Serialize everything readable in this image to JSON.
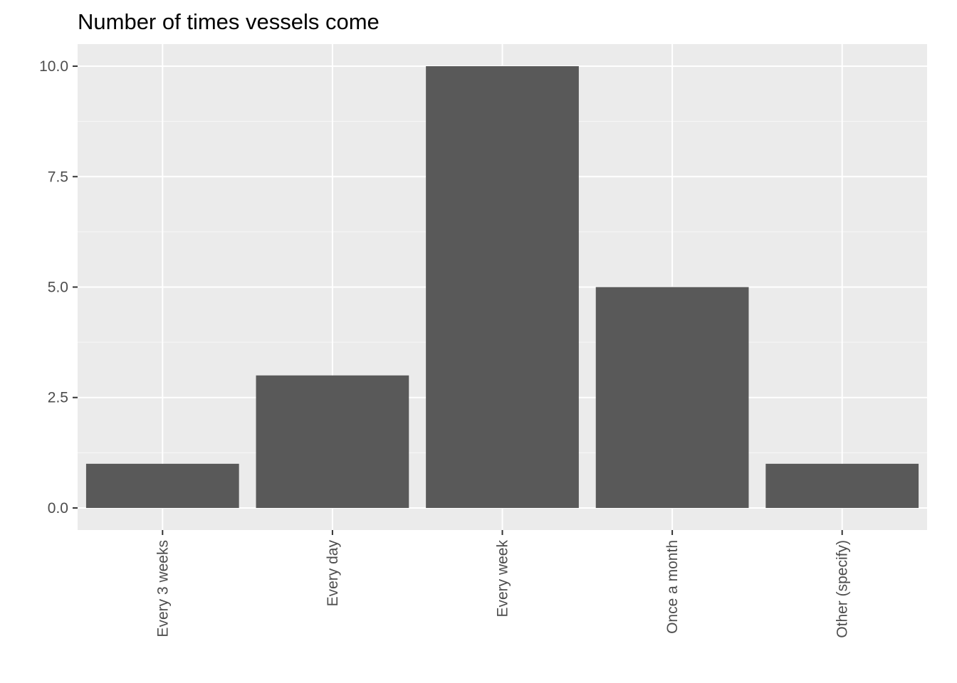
{
  "chart_data": {
    "type": "bar",
    "title": "Number of times vessels come",
    "xlabel": "",
    "ylabel": "",
    "categories": [
      "Every 3 weeks",
      "Every day",
      "Every week",
      "Once a month",
      "Other (specify)"
    ],
    "values": [
      1,
      3,
      10,
      5,
      1
    ],
    "ylim": [
      -0.5,
      10.5
    ],
    "yticks": [
      0,
      2.5,
      5,
      7.5,
      10
    ],
    "ytick_labels": [
      "0.0",
      "2.5",
      "5.0",
      "7.5",
      "10.0"
    ],
    "x_tick_rotation": "vertical",
    "grid": true,
    "legend": "none",
    "colors": {
      "bar": "#595959",
      "panel_background": "#ebebeb",
      "grid_major": "#ffffff",
      "grid_minor": "#f7f7f7",
      "tick": "#333333",
      "tick_label": "#4d4d4d",
      "title": "#000000"
    }
  }
}
